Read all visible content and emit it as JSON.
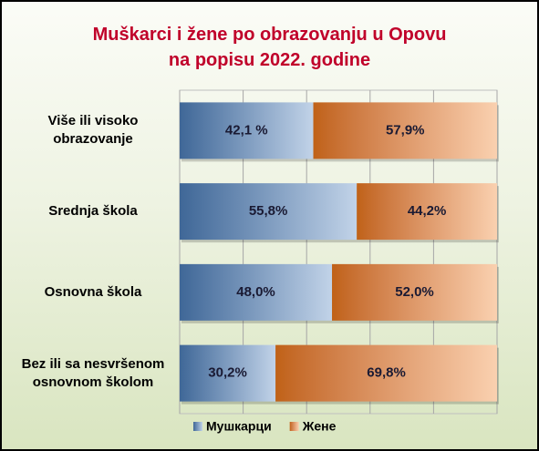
{
  "chart_data": {
    "type": "stacked_barh",
    "title": "Muškarci i žene po obrazovanju u Opovu\nna popisu 2022. godine",
    "categories": [
      "Više ili visoko\nobrazovanje",
      "Srednja škola",
      "Osnovna škola",
      "Bez ili sa nesvršenom\nosnovnom školom"
    ],
    "series": [
      {
        "name": "Мушкарци",
        "color": "#4f81bd",
        "values": [
          42.1,
          55.8,
          48.0,
          30.2
        ],
        "value_labels": [
          "42,1 %",
          "55,8%",
          "48,0%",
          "30,2%"
        ]
      },
      {
        "name": "Жене",
        "color": "#f07a1c",
        "values": [
          57.9,
          44.2,
          52.0,
          69.8
        ],
        "value_labels": [
          "57,9%",
          "44,2%",
          "52,0%",
          "69,8%"
        ]
      }
    ],
    "xlim": [
      0,
      100
    ],
    "xticks": [
      0,
      20,
      40,
      60,
      80,
      100
    ],
    "grid": true,
    "legend": "bottom"
  }
}
